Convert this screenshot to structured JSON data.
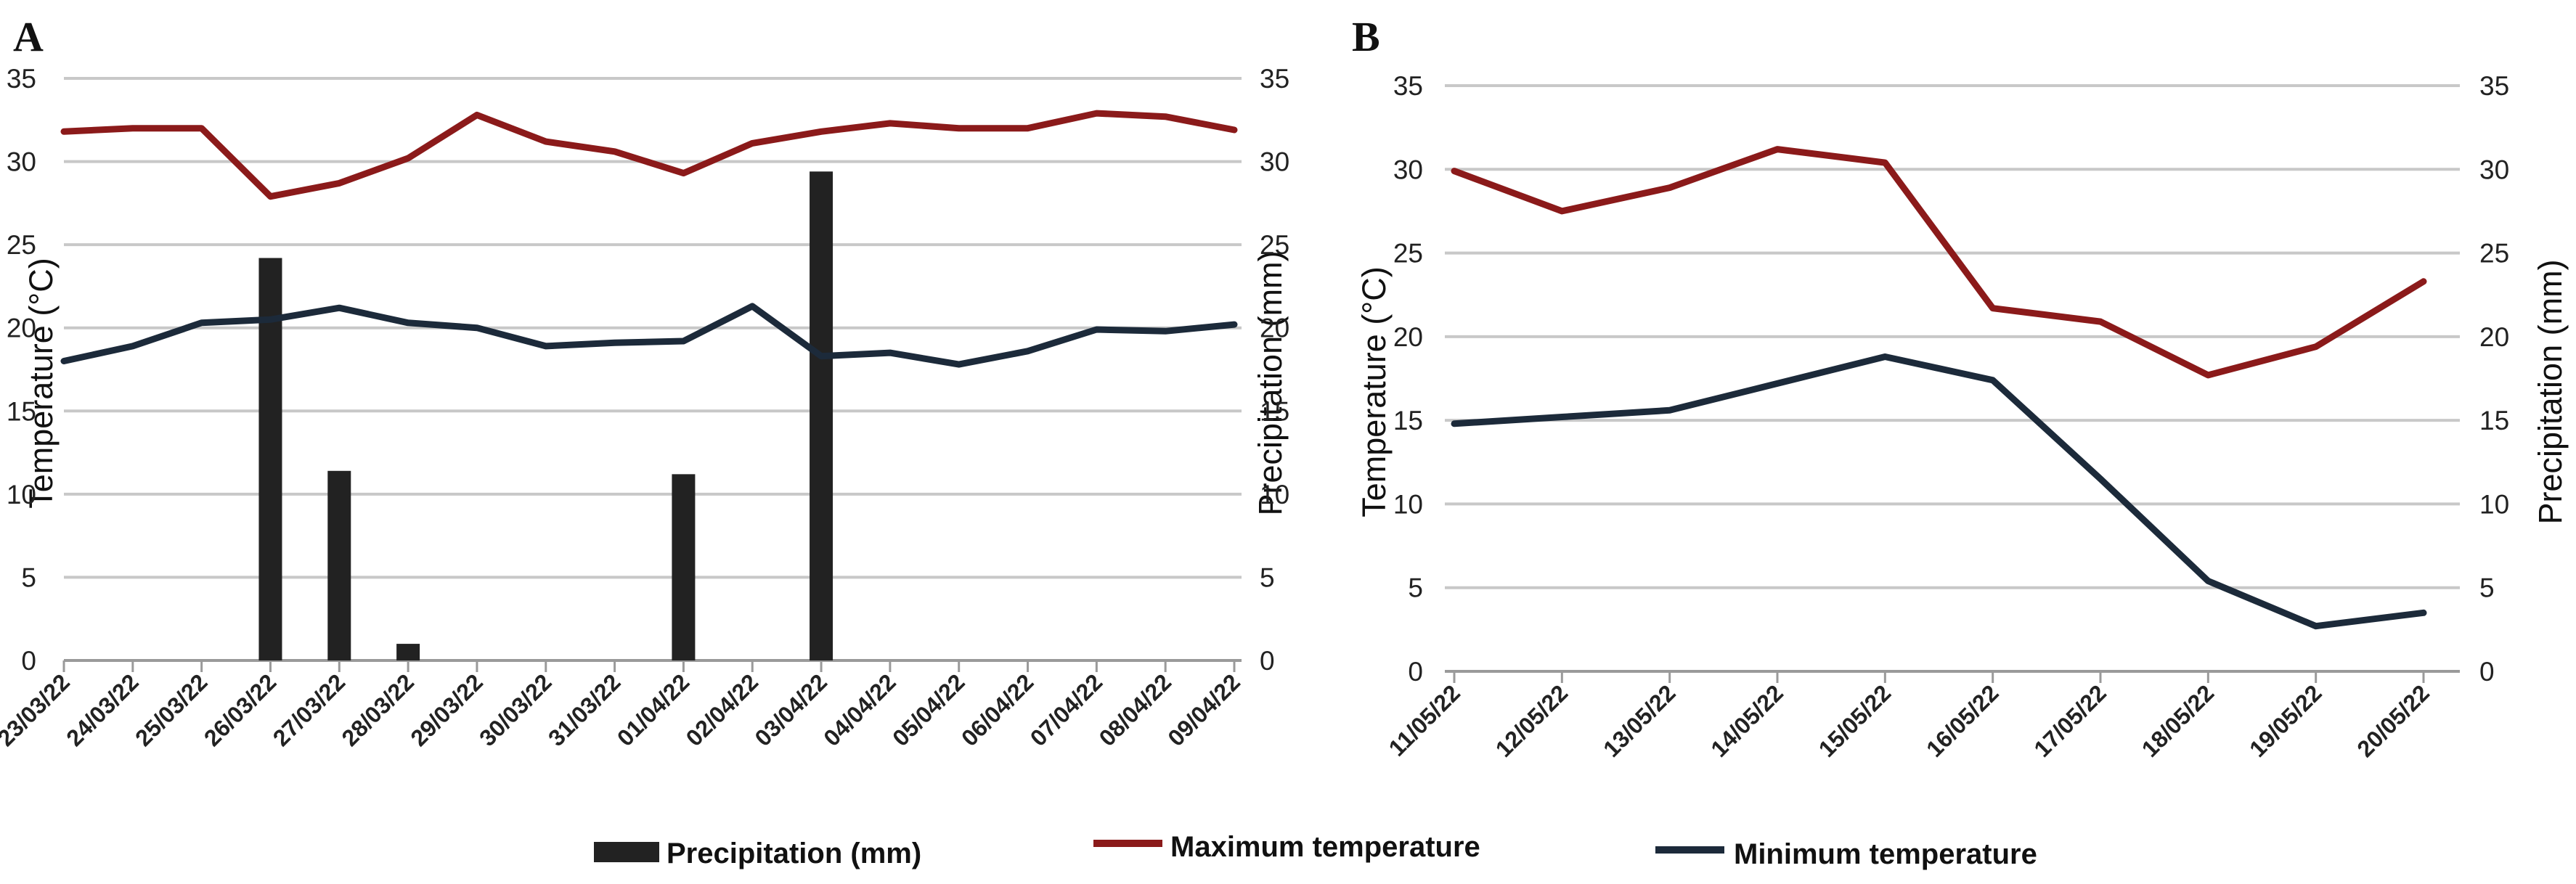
{
  "colors": {
    "max_temp": "#8b1a1a",
    "min_temp": "#1c2a3a",
    "precip": "#222222",
    "grid": "#c8c8c8"
  },
  "legend": {
    "precip": "Precipitation (mm)",
    "max": "Maximum temperature",
    "min": "Minimum temperature"
  },
  "chart_data": [
    {
      "panel": "A",
      "type": "line+bar",
      "categories": [
        "23/03/22",
        "24/03/22",
        "25/03/22",
        "26/03/22",
        "27/03/22",
        "28/03/22",
        "29/03/22",
        "30/03/22",
        "31/03/22",
        "01/04/22",
        "02/04/22",
        "03/04/22",
        "04/04/22",
        "05/04/22",
        "06/04/22",
        "07/04/22",
        "08/04/22",
        "09/04/22"
      ],
      "series": [
        {
          "name": "Precipitation (mm)",
          "kind": "bar",
          "axis": "right",
          "values": [
            0,
            0,
            0,
            24.2,
            11.4,
            1.0,
            0,
            0,
            0,
            11.2,
            0,
            29.4,
            0,
            0,
            0,
            0,
            0,
            0
          ]
        },
        {
          "name": "Maximum temperature",
          "kind": "line",
          "axis": "left",
          "values": [
            31.8,
            32.0,
            32.0,
            27.9,
            28.7,
            30.2,
            32.8,
            31.2,
            30.6,
            29.3,
            31.1,
            31.8,
            32.3,
            32.0,
            32.0,
            32.9,
            32.7,
            31.9
          ]
        },
        {
          "name": "Minimum temperature",
          "kind": "line",
          "axis": "left",
          "values": [
            18.0,
            18.9,
            20.3,
            20.5,
            21.2,
            20.3,
            20.0,
            18.9,
            19.1,
            19.2,
            21.3,
            18.3,
            18.5,
            17.8,
            18.6,
            19.9,
            19.8,
            20.2
          ]
        }
      ],
      "ylabel": "Temperature (°C)",
      "y2label": "Precipitation (mm)",
      "ylim": [
        0,
        35
      ],
      "y2lim": [
        0,
        35
      ],
      "yticks": [
        "0",
        "5",
        "10",
        "15",
        "20",
        "25",
        "30",
        "35"
      ],
      "y2ticks": [
        "0",
        "5",
        "10",
        "15",
        "20",
        "25",
        "30",
        "35"
      ]
    },
    {
      "panel": "B",
      "type": "line",
      "categories": [
        "11/05/22",
        "12/05/22",
        "13/05/22",
        "14/05/22",
        "15/05/22",
        "16/05/22",
        "17/05/22",
        "18/05/22",
        "19/05/22",
        "20/05/22"
      ],
      "series": [
        {
          "name": "Maximum temperature",
          "kind": "line",
          "axis": "left",
          "values": [
            29.9,
            27.5,
            28.9,
            31.2,
            30.4,
            21.7,
            20.9,
            17.7,
            19.4,
            23.3
          ]
        },
        {
          "name": "Minimum temperature",
          "kind": "line",
          "axis": "left",
          "values": [
            14.8,
            15.2,
            15.6,
            17.2,
            18.8,
            17.4,
            11.5,
            5.4,
            2.7,
            3.5
          ]
        }
      ],
      "ylabel": "Temperature (°C)",
      "y2label": "Precipitation (mm)",
      "ylim": [
        0,
        35
      ],
      "y2lim": [
        0,
        35
      ],
      "yticks": [
        "0",
        "5",
        "10",
        "15",
        "20",
        "25",
        "30",
        "35"
      ],
      "y2ticks": [
        "0",
        "5",
        "10",
        "15",
        "20",
        "25",
        "30",
        "35"
      ]
    }
  ]
}
